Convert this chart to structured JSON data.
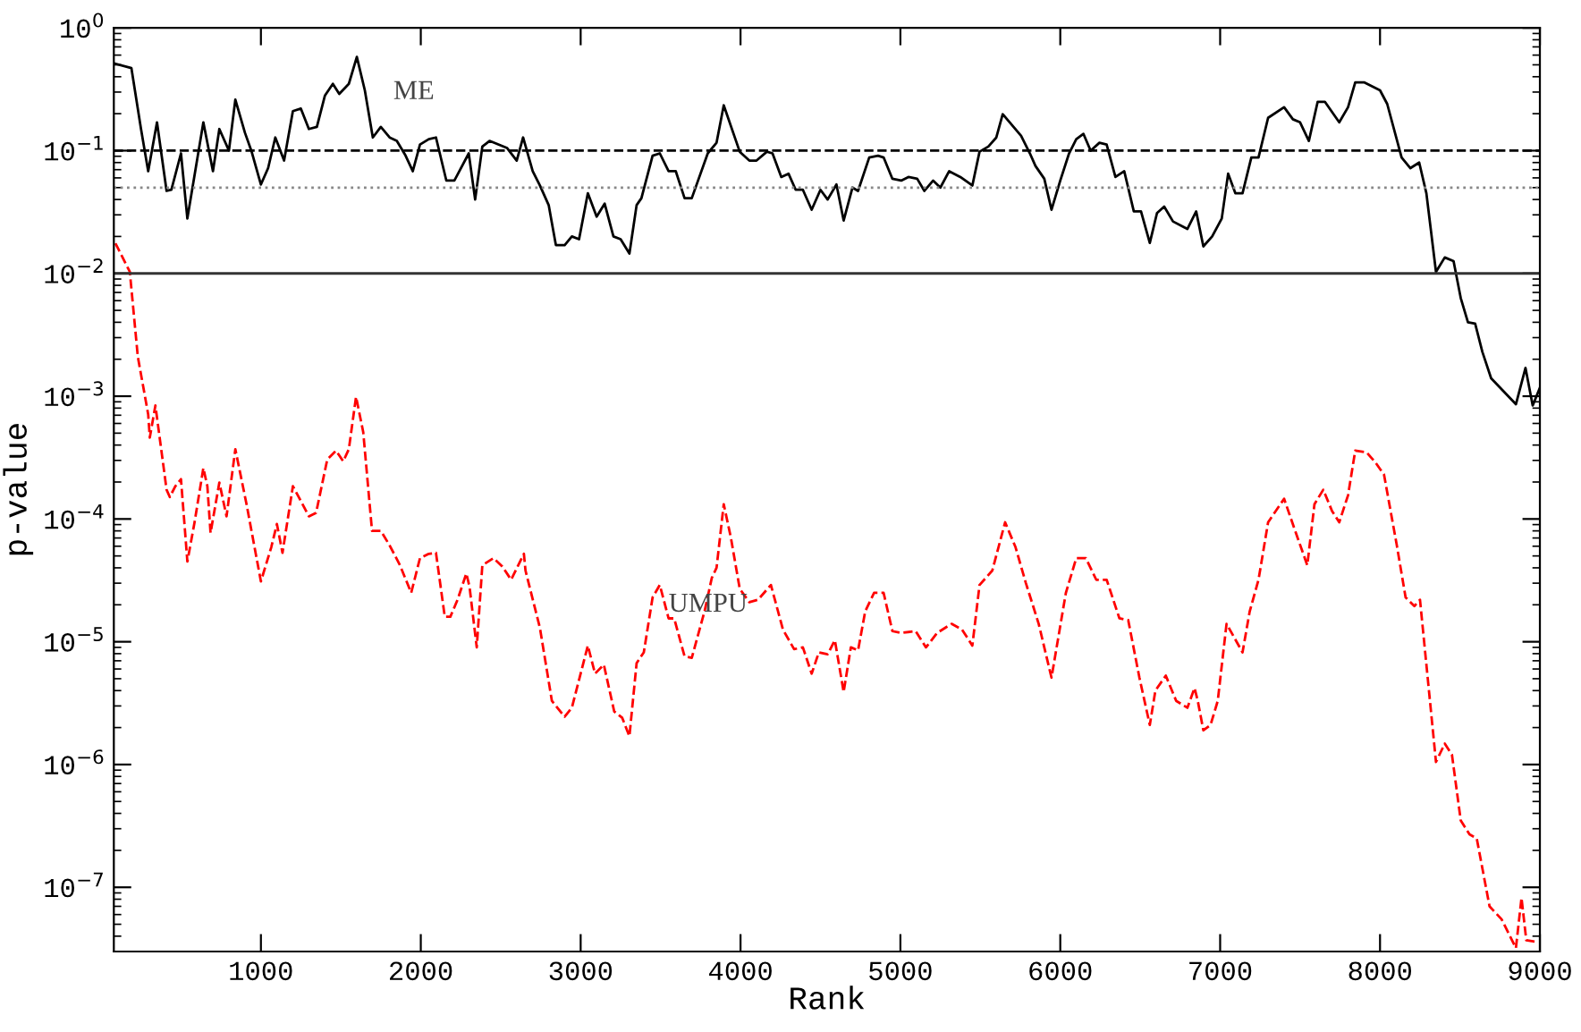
{
  "chart_data": {
    "type": "line",
    "xlabel": "Rank",
    "ylabel": "p-value",
    "log": "y",
    "xlim": [
      80,
      9000
    ],
    "xticks": [
      1000,
      2000,
      3000,
      4000,
      5000,
      6000,
      7000,
      8000,
      9000
    ],
    "ylim": [
      3e-08,
      1
    ],
    "yticks": [
      {
        "value": 1e-07,
        "label": "10$^{−7}$"
      },
      {
        "value": 1e-06,
        "label": "10$^{−6}$"
      },
      {
        "value": 1e-05,
        "label": "10$^{−5}$"
      },
      {
        "value": 0.0001,
        "label": "10$^{−4}$"
      },
      {
        "value": 0.001,
        "label": "10$^{−3}$"
      },
      {
        "value": 0.01,
        "label": "10$^{−2}$"
      },
      {
        "value": 0.1,
        "label": "10$^{−1}$"
      },
      {
        "value": 1,
        "label": "10$^{0}$"
      }
    ],
    "grid": false,
    "legend": false,
    "marker": "none",
    "ref_lines": [
      {
        "axis": "y",
        "value": 0.1,
        "label": null,
        "color": "#000000",
        "line_style": "dashed"
      },
      {
        "axis": "y",
        "value": 0.05,
        "label": null,
        "color": "#888888",
        "line_style": "dotted"
      },
      {
        "axis": "y",
        "value": 0.01,
        "label": null,
        "color": "#333333",
        "line_style": "solid"
      }
    ],
    "series": [
      {
        "name": "ME",
        "color": "#000000",
        "line_style": "solid",
        "x": [
          90,
          190,
          250,
          295,
          350,
          410,
          440,
          500,
          540,
          640,
          700,
          740,
          800,
          840,
          900,
          940,
          1000,
          1045,
          1090,
          1145,
          1200,
          1250,
          1300,
          1350,
          1400,
          1450,
          1490,
          1550,
          1600,
          1650,
          1700,
          1750,
          1805,
          1850,
          1905,
          1950,
          1995,
          2050,
          2095,
          2160,
          2210,
          2300,
          2340,
          2385,
          2430,
          2540,
          2600,
          2640,
          2700,
          2745,
          2800,
          2845,
          2900,
          2945,
          2990,
          3045,
          3100,
          3150,
          3205,
          3250,
          3305,
          3350,
          3380,
          3450,
          3495,
          3550,
          3595,
          3650,
          3695,
          3795,
          3850,
          3895,
          3995,
          4055,
          4100,
          4165,
          4200,
          4255,
          4300,
          4345,
          4390,
          4445,
          4500,
          4545,
          4600,
          4645,
          4700,
          4735,
          4805,
          4860,
          4895,
          4950,
          5005,
          5050,
          5105,
          5150,
          5205,
          5250,
          5305,
          5375,
          5450,
          5495,
          5550,
          5600,
          5640,
          5755,
          5810,
          5845,
          5900,
          5945,
          6000,
          6055,
          6100,
          6145,
          6190,
          6245,
          6290,
          6345,
          6400,
          6460,
          6505,
          6560,
          6605,
          6650,
          6705,
          6795,
          6850,
          6895,
          6950,
          7010,
          7050,
          7095,
          7140,
          7195,
          7240,
          7300,
          7400,
          7455,
          7500,
          7555,
          7610,
          7655,
          7745,
          7800,
          7845,
          7900,
          8000,
          8045,
          8135,
          8190,
          8245,
          8290,
          8350,
          8405,
          8460,
          8505,
          8550,
          8595,
          8640,
          8695,
          8850,
          8910,
          8955,
          9000
        ],
        "values": [
          0.51,
          0.47,
          0.15,
          0.068,
          0.17,
          0.047,
          0.048,
          0.095,
          0.028,
          0.17,
          0.068,
          0.15,
          0.1,
          0.26,
          0.14,
          0.1,
          0.053,
          0.072,
          0.128,
          0.083,
          0.21,
          0.22,
          0.15,
          0.156,
          0.28,
          0.35,
          0.29,
          0.35,
          0.58,
          0.31,
          0.128,
          0.156,
          0.128,
          0.12,
          0.091,
          0.068,
          0.112,
          0.124,
          0.128,
          0.057,
          0.057,
          0.095,
          0.04,
          0.108,
          0.12,
          0.105,
          0.083,
          0.128,
          0.068,
          0.052,
          0.036,
          0.017,
          0.017,
          0.02,
          0.019,
          0.045,
          0.029,
          0.037,
          0.02,
          0.019,
          0.0145,
          0.036,
          0.041,
          0.091,
          0.095,
          0.068,
          0.068,
          0.041,
          0.041,
          0.095,
          0.116,
          0.234,
          0.098,
          0.083,
          0.083,
          0.098,
          0.095,
          0.061,
          0.065,
          0.048,
          0.048,
          0.033,
          0.048,
          0.04,
          0.053,
          0.027,
          0.05,
          0.047,
          0.088,
          0.091,
          0.088,
          0.059,
          0.057,
          0.061,
          0.059,
          0.047,
          0.057,
          0.05,
          0.068,
          0.061,
          0.052,
          0.098,
          0.108,
          0.128,
          0.198,
          0.132,
          0.095,
          0.075,
          0.059,
          0.033,
          0.057,
          0.095,
          0.124,
          0.137,
          0.1,
          0.116,
          0.112,
          0.061,
          0.068,
          0.032,
          0.032,
          0.0177,
          0.031,
          0.035,
          0.0265,
          0.023,
          0.032,
          0.0166,
          0.02,
          0.028,
          0.065,
          0.045,
          0.045,
          0.088,
          0.088,
          0.185,
          0.226,
          0.18,
          0.17,
          0.12,
          0.25,
          0.25,
          0.17,
          0.226,
          0.36,
          0.36,
          0.31,
          0.24,
          0.088,
          0.072,
          0.08,
          0.045,
          0.0103,
          0.0135,
          0.0126,
          0.0063,
          0.004,
          0.0039,
          0.0023,
          0.0014,
          0.00086,
          0.0017,
          0.00084,
          0.00117
        ]
      },
      {
        "name": "UMPU",
        "color": "#ff0000",
        "line_style": "dashed",
        "x": [
          90,
          180,
          230,
          295,
          305,
          340,
          410,
          430,
          465,
          500,
          540,
          585,
          640,
          665,
          685,
          740,
          785,
          840,
          910,
          1000,
          1065,
          1100,
          1135,
          1200,
          1255,
          1300,
          1345,
          1415,
          1470,
          1515,
          1550,
          1595,
          1640,
          1695,
          1750,
          1805,
          1870,
          1940,
          1995,
          2050,
          2095,
          2150,
          2185,
          2230,
          2285,
          2305,
          2350,
          2385,
          2455,
          2510,
          2565,
          2645,
          2655,
          2745,
          2820,
          2900,
          2945,
          3045,
          3090,
          3145,
          3210,
          3260,
          3305,
          3350,
          3395,
          3450,
          3495,
          3550,
          3585,
          3650,
          3695,
          3775,
          3820,
          3850,
          3895,
          3940,
          3995,
          4055,
          4110,
          4190,
          4265,
          4335,
          4390,
          4445,
          4490,
          4545,
          4590,
          4645,
          4690,
          4735,
          4780,
          4835,
          4895,
          4950,
          5005,
          5095,
          5160,
          5230,
          5320,
          5385,
          5450,
          5495,
          5575,
          5655,
          5720,
          5785,
          5865,
          5945,
          6035,
          6100,
          6160,
          6225,
          6290,
          6370,
          6425,
          6495,
          6560,
          6595,
          6660,
          6725,
          6795,
          6840,
          6860,
          6895,
          6940,
          6985,
          7040,
          7085,
          7140,
          7185,
          7240,
          7300,
          7400,
          7465,
          7545,
          7590,
          7645,
          7700,
          7745,
          7800,
          7845,
          7915,
          7970,
          8025,
          8105,
          8160,
          8215,
          8250,
          8350,
          8405,
          8450,
          8505,
          8560,
          8605,
          8685,
          8760,
          8850,
          8885,
          8915,
          8975
        ],
        "values": [
          0.0176,
          0.0103,
          0.0021,
          0.00071,
          0.00046,
          0.00084,
          0.000173,
          0.000151,
          0.000185,
          0.000211,
          4.5e-05,
          9.4e-05,
          0.00026,
          0.000185,
          7.7e-05,
          0.000198,
          0.000105,
          0.00037,
          0.000132,
          3.1e-05,
          5.9e-05,
          9.1e-05,
          5.3e-05,
          0.000185,
          0.000136,
          0.000105,
          0.000112,
          0.000305,
          0.00036,
          0.000295,
          0.00037,
          0.00099,
          0.00051,
          8e-05,
          8e-05,
          6.1e-05,
          4.2e-05,
          2.5e-05,
          4.8e-05,
          5.2e-05,
          5.3e-05,
          1.6e-05,
          1.6e-05,
          2.2e-05,
          3.6e-05,
          2.8e-05,
          9e-06,
          4.2e-05,
          4.8e-05,
          4.1e-05,
          3.2e-05,
          5.2e-05,
          3.8e-05,
          1.3e-05,
          3.3e-06,
          2.45e-06,
          2.9e-06,
          9.3e-06,
          5.5e-06,
          6.5e-06,
          2.7e-06,
          2.4e-06,
          1.7e-06,
          6.7e-06,
          8.2e-06,
          2.3e-05,
          2.9e-05,
          1.55e-05,
          1.55e-05,
          7.6e-06,
          7.4e-06,
          1.77e-05,
          3.3e-05,
          4e-05,
          0.000132,
          7e-05,
          2.7e-05,
          2.1e-05,
          2.2e-05,
          2.9e-05,
          1.26e-05,
          8.7e-06,
          9e-06,
          5.5e-06,
          8.2e-06,
          7.9e-06,
          1.03e-05,
          3.9e-06,
          9e-06,
          8.5e-06,
          1.77e-05,
          2.5e-05,
          2.5e-05,
          1.22e-05,
          1.18e-05,
          1.22e-05,
          9e-06,
          1.18e-05,
          1.4e-05,
          1.26e-05,
          9.3e-06,
          2.9e-05,
          3.8e-05,
          9.4e-05,
          5.9e-05,
          3e-05,
          1.4e-05,
          5.1e-06,
          2.5e-05,
          4.8e-05,
          4.8e-05,
          3.2e-05,
          3.2e-05,
          1.55e-05,
          1.5e-05,
          5.1e-06,
          2.1e-06,
          4e-06,
          5.3e-06,
          3.3e-06,
          2.9e-06,
          4.2e-06,
          3.3e-06,
          1.9e-06,
          2.1e-06,
          3.3e-06,
          1.4e-05,
          1.1e-05,
          8.2e-06,
          1.77e-05,
          3.2e-05,
          9.4e-05,
          0.000146,
          8.3e-05,
          4.2e-05,
          0.000132,
          0.000173,
          0.000116,
          9.4e-05,
          0.000156,
          0.00036,
          0.00035,
          0.00029,
          0.00023,
          6.1e-05,
          2.3e-05,
          1.95e-05,
          2.2e-05,
          1.05e-06,
          1.48e-06,
          1.2e-06,
          3.5e-07,
          2.7e-07,
          2.5e-07,
          7e-08,
          5.5e-08,
          3.2e-08,
          8.2e-08,
          3.7e-08,
          3.6e-08
        ]
      }
    ]
  }
}
